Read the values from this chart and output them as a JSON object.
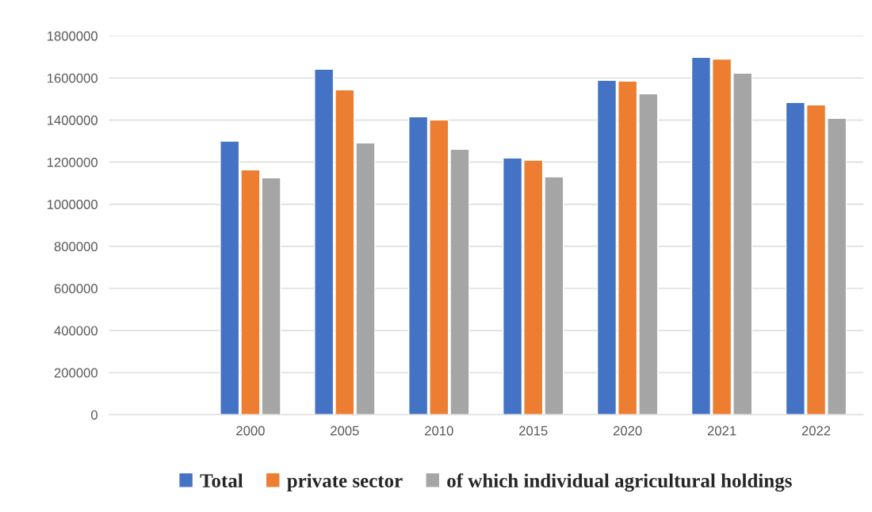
{
  "chart_data": {
    "type": "bar",
    "categories": [
      null,
      "2000",
      "2005",
      "2010",
      "2015",
      "2020",
      "2021",
      "2022"
    ],
    "series": [
      {
        "name": "Total",
        "color": "#4472c4",
        "values": [
          null,
          1300000,
          1642000,
          1416000,
          1220000,
          1589000,
          1698000,
          1483000
        ]
      },
      {
        "name": "private sector",
        "color": "#ed7d31",
        "values": [
          null,
          1163000,
          1544000,
          1401000,
          1209000,
          1585000,
          1690000,
          1472000
        ]
      },
      {
        "name": "of which individual agricultural holdings",
        "color": "#a5a5a5",
        "values": [
          null,
          1126000,
          1291000,
          1261000,
          1130000,
          1525000,
          1623000,
          1408000
        ]
      }
    ],
    "ylim": [
      0,
      1800000
    ],
    "yticks": [
      0,
      200000,
      400000,
      600000,
      800000,
      1000000,
      1200000,
      1400000,
      1600000,
      1800000
    ],
    "grid": "y",
    "legend": "bottom"
  }
}
